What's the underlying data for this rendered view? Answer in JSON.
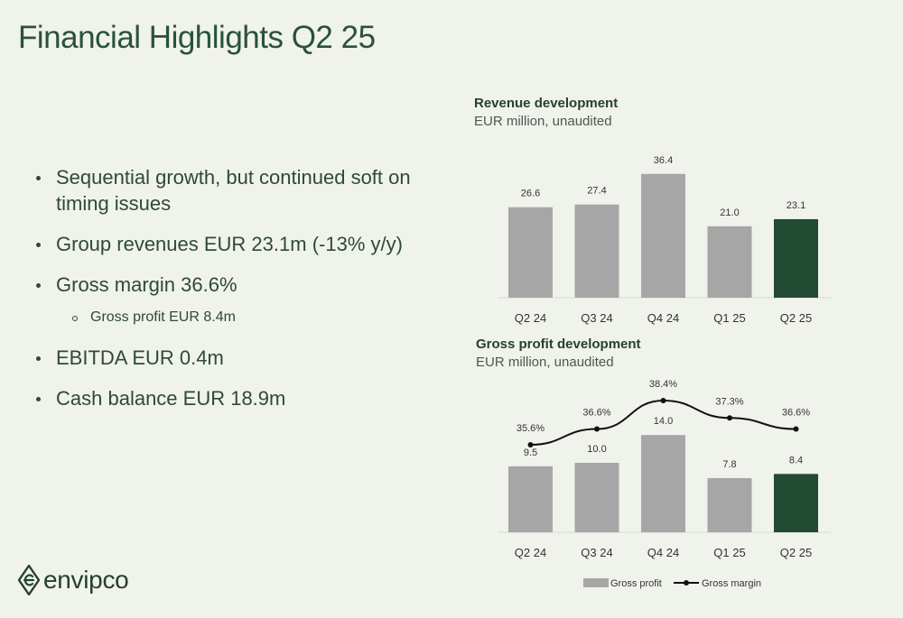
{
  "page": {
    "title": "Financial Highlights Q2 25"
  },
  "bullets": [
    {
      "text": "Sequential growth, but continued soft on timing issues",
      "level": 1
    },
    {
      "text": "Group revenues EUR 23.1m (-13% y/y)",
      "level": 1
    },
    {
      "text": "Gross margin 36.6%",
      "level": 1
    },
    {
      "text": "Gross profit EUR 8.4m",
      "level": 2
    },
    {
      "text": "EBITDA EUR 0.4m",
      "level": 1
    },
    {
      "text": "Cash balance EUR 18.9m",
      "level": 1
    }
  ],
  "colors": {
    "bar_grey": "#a6a6a6",
    "bar_highlight": "#234a32",
    "line": "#111111"
  },
  "logo": {
    "text": "envipco",
    "icon": "envipco-e-icon"
  },
  "chart_data": [
    {
      "type": "bar",
      "title": "Revenue development",
      "subtitle": "EUR million, unaudited",
      "categories": [
        "Q2 24",
        "Q3 24",
        "Q4 24",
        "Q1 25",
        "Q2 25"
      ],
      "values": [
        26.6,
        27.4,
        36.4,
        21.0,
        23.1
      ],
      "value_labels": [
        "26.6",
        "27.4",
        "36.4",
        "21.0",
        "23.1"
      ],
      "highlight_index": 4,
      "ylim": [
        0,
        40
      ]
    },
    {
      "type": "bar",
      "title": "Gross profit development",
      "subtitle": "EUR million,  unaudited",
      "categories": [
        "Q2 24",
        "Q3 24",
        "Q4 24",
        "Q1 25",
        "Q2 25"
      ],
      "series": [
        {
          "name": "Gross profit",
          "type": "bar",
          "values": [
            9.5,
            10.0,
            14.0,
            7.8,
            8.4
          ],
          "labels": [
            "9.5",
            "10.0",
            "14.0",
            "7.8",
            "8.4"
          ]
        },
        {
          "name": "Gross margin",
          "type": "line",
          "values": [
            35.6,
            36.6,
            38.4,
            37.3,
            36.6
          ],
          "labels": [
            "35.6%",
            "36.6%",
            "38.4%",
            "37.3%",
            "36.6%"
          ]
        }
      ],
      "highlight_index": 4,
      "legend": "bottom"
    }
  ]
}
